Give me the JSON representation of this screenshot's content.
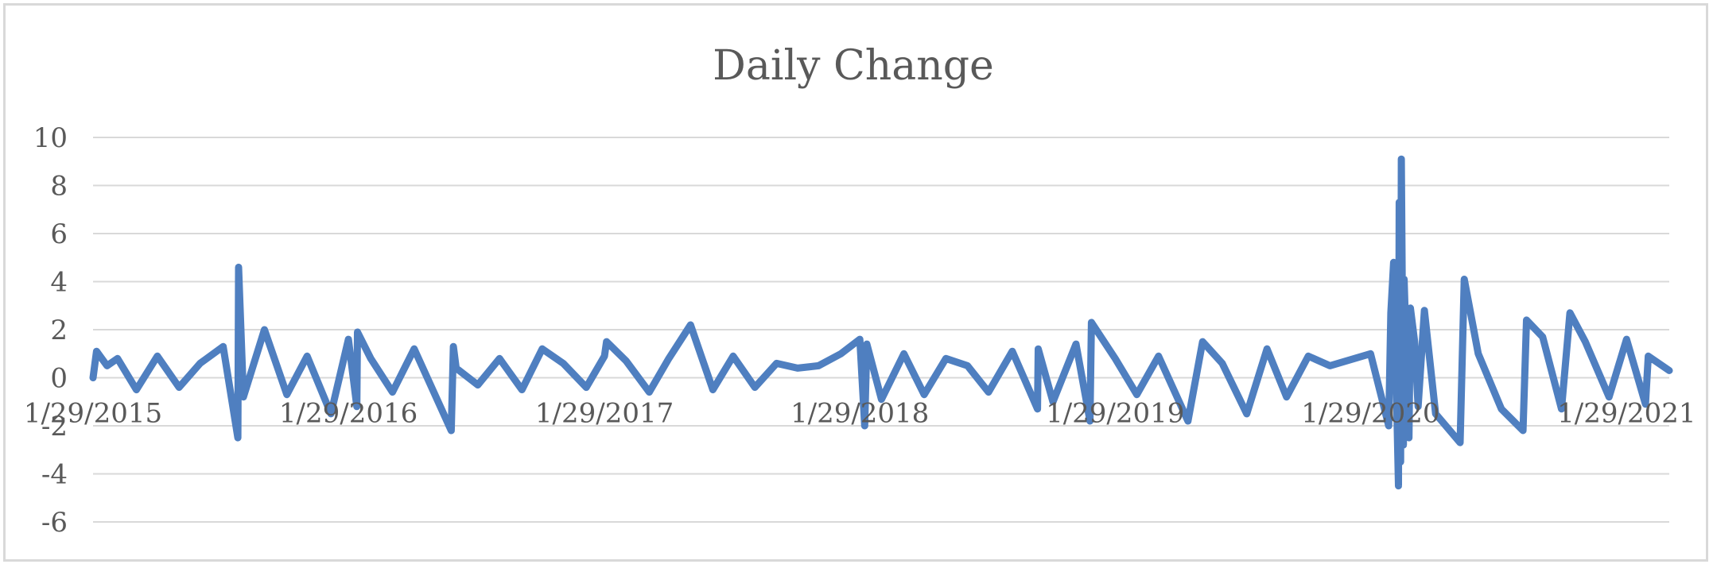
{
  "chart_data": {
    "type": "line",
    "title": "Daily Change",
    "xlabel": "",
    "ylabel": "",
    "ylim": [
      -6,
      10
    ],
    "yticks": [
      -6,
      -4,
      -2,
      0,
      2,
      4,
      6,
      8,
      10
    ],
    "x_tick_labels": [
      "1/29/2015",
      "1/29/2016",
      "1/29/2017",
      "1/29/2018",
      "1/29/2019",
      "1/29/2020",
      "1/29/2021"
    ],
    "x_range": [
      "1/29/2015",
      "3/31/2021"
    ],
    "grid": "horizontal",
    "legend": "none",
    "line_color": "#4f7fc0",
    "series": [
      {
        "x": [
          "1/29/2015",
          "2/3/2015",
          "2/18/2015",
          "3/5/2015",
          "4/1/2015",
          "5/1/2015",
          "6/1/2015",
          "7/1/2015",
          "8/3/2015",
          "8/24/2015",
          "8/25/2015",
          "9/1/2015",
          "10/1/2015",
          "11/2/2015",
          "12/1/2015",
          "1/4/2016",
          "1/29/2016",
          "2/10/2016",
          "2/11/2016",
          "3/1/2016",
          "4/1/2016",
          "5/2/2016",
          "6/24/2016",
          "6/27/2016",
          "7/1/2016",
          "8/1/2016",
          "9/1/2016",
          "10/3/2016",
          "11/1/2016",
          "12/1/2016",
          "1/3/2017",
          "1/29/2017",
          "2/1/2017",
          "3/1/2017",
          "4/3/2017",
          "5/1/2017",
          "6/1/2017",
          "7/3/2017",
          "8/1/2017",
          "9/1/2017",
          "10/2/2017",
          "11/1/2017",
          "12/1/2017",
          "1/2/2018",
          "1/29/2018",
          "2/5/2018",
          "2/8/2018",
          "3/1/2018",
          "4/2/2018",
          "5/1/2018",
          "6/1/2018",
          "7/2/2018",
          "8/1/2018",
          "9/4/2018",
          "10/10/2018",
          "10/11/2018",
          "11/1/2018",
          "12/4/2018",
          "12/24/2018",
          "12/26/2018",
          "1/29/2019",
          "3/1/2019",
          "4/1/2019",
          "5/13/2019",
          "6/3/2019",
          "7/1/2019",
          "8/5/2019",
          "9/3/2019",
          "10/1/2019",
          "11/1/2019",
          "12/2/2019",
          "1/29/2020",
          "2/24/2020",
          "2/27/2020",
          "3/2/2020",
          "3/9/2020",
          "3/10/2020",
          "3/12/2020",
          "3/13/2020",
          "3/16/2020",
          "3/17/2020",
          "3/24/2020",
          "3/26/2020",
          "4/1/2020",
          "4/6/2020",
          "4/15/2020",
          "5/1/2020",
          "6/5/2020",
          "6/11/2020",
          "7/1/2020",
          "8/3/2020",
          "9/3/2020",
          "9/8/2020",
          "10/1/2020",
          "10/28/2020",
          "11/9/2020",
          "12/1/2020",
          "1/4/2021",
          "1/29/2021",
          "2/25/2021",
          "3/1/2021",
          "3/31/2021"
        ],
        "values": [
          0.0,
          1.1,
          0.5,
          0.8,
          -0.5,
          0.9,
          -0.4,
          0.6,
          1.3,
          -2.5,
          4.6,
          -0.8,
          2.0,
          -0.7,
          0.9,
          -1.5,
          1.6,
          -1.2,
          1.9,
          0.8,
          -0.6,
          1.2,
          -2.2,
          1.3,
          0.4,
          -0.3,
          0.8,
          -0.5,
          1.2,
          0.6,
          -0.4,
          0.9,
          1.5,
          0.7,
          -0.6,
          0.8,
          2.2,
          -0.5,
          0.9,
          -0.4,
          0.6,
          0.4,
          0.5,
          1.0,
          1.6,
          -2.0,
          1.4,
          -0.9,
          1.0,
          -0.7,
          0.8,
          0.5,
          -0.6,
          1.1,
          -1.3,
          1.2,
          -1.0,
          1.4,
          -1.8,
          2.3,
          0.8,
          -0.7,
          0.9,
          -1.8,
          1.5,
          0.6,
          -1.5,
          1.2,
          -0.8,
          0.9,
          0.5,
          1.0,
          -2.0,
          2.7,
          4.8,
          -4.5,
          7.3,
          -3.5,
          9.1,
          -2.8,
          4.1,
          -2.5,
          2.9,
          1.5,
          -1.2,
          2.8,
          -1.5,
          -2.7,
          4.1,
          1.0,
          -1.3,
          -2.2,
          2.4,
          1.7,
          -1.3,
          2.7,
          1.5,
          -0.8,
          1.6,
          -1.1,
          0.9,
          0.3
        ]
      }
    ]
  }
}
